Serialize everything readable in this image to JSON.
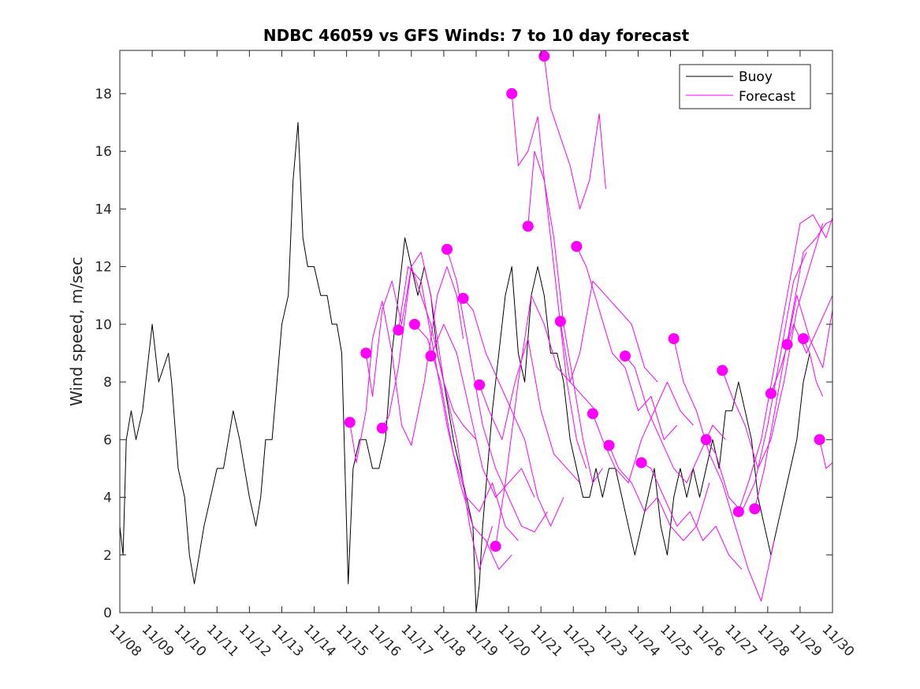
{
  "chart_data": {
    "type": "line",
    "title": "NDBC 46059 vs GFS Winds: 7 to 10 day forecast",
    "xlabel": "",
    "ylabel": "Wind speed, m/sec",
    "xlim": [
      0,
      22
    ],
    "ylim": [
      0,
      19.5
    ],
    "x_ticks": [
      {
        "value": 0,
        "label": "11/08"
      },
      {
        "value": 1,
        "label": "11/09"
      },
      {
        "value": 2,
        "label": "11/10"
      },
      {
        "value": 3,
        "label": "11/11"
      },
      {
        "value": 4,
        "label": "11/12"
      },
      {
        "value": 5,
        "label": "11/13"
      },
      {
        "value": 6,
        "label": "11/14"
      },
      {
        "value": 7,
        "label": "11/15"
      },
      {
        "value": 8,
        "label": "11/16"
      },
      {
        "value": 9,
        "label": "11/17"
      },
      {
        "value": 10,
        "label": "11/18"
      },
      {
        "value": 11,
        "label": "11/19"
      },
      {
        "value": 12,
        "label": "11/20"
      },
      {
        "value": 13,
        "label": "11/21"
      },
      {
        "value": 14,
        "label": "11/22"
      },
      {
        "value": 15,
        "label": "11/23"
      },
      {
        "value": 16,
        "label": "11/24"
      },
      {
        "value": 17,
        "label": "11/25"
      },
      {
        "value": 18,
        "label": "11/26"
      },
      {
        "value": 19,
        "label": "11/27"
      },
      {
        "value": 20,
        "label": "11/28"
      },
      {
        "value": 21,
        "label": "11/29"
      },
      {
        "value": 22,
        "label": "11/30"
      }
    ],
    "y_ticks": [
      {
        "value": 0,
        "label": "0"
      },
      {
        "value": 2,
        "label": "2"
      },
      {
        "value": 4,
        "label": "4"
      },
      {
        "value": 6,
        "label": "6"
      },
      {
        "value": 8,
        "label": "8"
      },
      {
        "value": 10,
        "label": "10"
      },
      {
        "value": 12,
        "label": "12"
      },
      {
        "value": 14,
        "label": "14"
      },
      {
        "value": 16,
        "label": "16"
      },
      {
        "value": 18,
        "label": "18"
      }
    ],
    "legend": {
      "position": "top-right",
      "entries": [
        {
          "name": "Buoy",
          "color": "#000000"
        },
        {
          "name": "Forecast",
          "color": "#ff00ff"
        }
      ]
    },
    "series": [
      {
        "name": "Buoy",
        "color": "#000000",
        "x": [
          0,
          0.1,
          0.2,
          0.35,
          0.5,
          0.7,
          0.9,
          1.0,
          1.2,
          1.5,
          1.6,
          1.8,
          2.0,
          2.15,
          2.3,
          2.45,
          2.6,
          2.8,
          3.0,
          3.2,
          3.35,
          3.5,
          3.7,
          3.85,
          4.0,
          4.2,
          4.35,
          4.5,
          4.7,
          4.85,
          5.0,
          5.2,
          5.35,
          5.5,
          5.65,
          5.8,
          6.0,
          6.2,
          6.4,
          6.55,
          6.7,
          6.85,
          6.95,
          7.05,
          7.2,
          7.4,
          7.6,
          7.8,
          8.0,
          8.2,
          8.4,
          8.6,
          8.8,
          9.0,
          9.2,
          9.4,
          9.6,
          9.8,
          10.0,
          10.15,
          10.3,
          10.5,
          10.7,
          10.9,
          11.0,
          11.1,
          11.2,
          11.35,
          11.5,
          11.7,
          11.9,
          12.1,
          12.3,
          12.5,
          12.7,
          12.9,
          13.1,
          13.3,
          13.5,
          13.7,
          13.9,
          14.1,
          14.3,
          14.5,
          14.7,
          14.9,
          15.1,
          15.3,
          15.5,
          15.7,
          15.9,
          16.1,
          16.3,
          16.5,
          16.7,
          16.9,
          17.1,
          17.3,
          17.5,
          17.7,
          17.9,
          18.1,
          18.3,
          18.5,
          18.7,
          18.9,
          19.1,
          19.3,
          19.5,
          19.7,
          19.9,
          20.1,
          20.3,
          20.5,
          20.7,
          20.9,
          21.1,
          21.3
        ],
        "values": [
          3,
          2,
          6,
          7,
          6,
          7,
          9,
          10,
          8,
          9,
          8,
          5,
          4,
          2,
          1,
          2,
          3,
          4,
          5,
          5,
          6,
          7,
          6,
          5,
          4,
          3,
          4,
          6,
          6,
          8,
          10,
          11,
          15,
          17,
          13,
          12,
          12,
          11,
          11,
          10,
          10,
          9,
          5,
          1,
          5,
          6,
          6,
          5,
          5,
          6,
          9,
          11,
          13,
          12,
          11,
          12,
          11,
          9,
          8,
          7,
          6,
          5,
          4,
          3,
          0,
          1,
          3,
          5,
          7,
          9,
          11,
          12,
          9,
          8,
          11,
          12,
          11,
          9,
          9,
          8,
          6,
          5,
          4,
          4,
          5,
          4,
          5,
          5,
          4,
          3,
          2,
          3,
          4,
          5,
          3,
          2,
          4,
          5,
          4,
          5,
          4,
          5,
          6,
          5,
          7,
          7,
          8,
          7,
          6,
          4,
          3,
          2,
          3,
          4,
          5,
          6,
          8,
          9
        ]
      },
      {
        "name": "Forecast run 1",
        "color": "#ff00ff",
        "x": [
          7.1,
          7.3,
          7.6,
          7.8,
          8.1,
          8.4,
          8.7,
          9.0,
          9.4,
          9.8,
          10.1,
          10.4,
          10.6
        ],
        "values": [
          6.6,
          5.2,
          7.0,
          9.5,
          10.8,
          9.0,
          6.5,
          5.8,
          8.0,
          11.0,
          12.0,
          11.0,
          9.5
        ]
      },
      {
        "name": "Forecast run 2",
        "color": "#ff00ff",
        "x": [
          7.6,
          7.8,
          8.1,
          8.4,
          8.7,
          9.0,
          9.3,
          9.6,
          10.0,
          10.3,
          10.6,
          11.0
        ],
        "values": [
          9.0,
          7.5,
          10.5,
          11.5,
          10.0,
          12.0,
          11.0,
          10.0,
          8.0,
          7.0,
          6.5,
          6.0
        ]
      },
      {
        "name": "Forecast run 3",
        "color": "#ff00ff",
        "x": [
          8.1,
          8.3,
          8.6,
          9.0,
          9.3,
          9.6,
          10.0,
          10.4,
          10.8,
          11.1,
          11.5
        ],
        "values": [
          6.4,
          6.8,
          8.5,
          12.0,
          12.5,
          11.0,
          8.0,
          6.0,
          3.0,
          1.5,
          3.0
        ]
      },
      {
        "name": "Forecast run 4",
        "color": "#ff00ff",
        "x": [
          8.6,
          8.9,
          9.3,
          9.7,
          10.1,
          10.5,
          10.9,
          11.3,
          11.7,
          12.1
        ],
        "values": [
          9.8,
          12.0,
          11.5,
          9.0,
          6.5,
          4.5,
          3.0,
          2.5,
          1.5,
          2.0
        ]
      },
      {
        "name": "Forecast run 5",
        "color": "#ff00ff",
        "x": [
          9.1,
          9.5,
          9.9,
          10.3,
          10.7,
          11.1,
          11.5,
          11.9,
          12.3
        ],
        "values": [
          10.0,
          9.5,
          8.0,
          5.5,
          4.0,
          3.5,
          4.5,
          3.0,
          2.5
        ]
      },
      {
        "name": "Forecast run 6",
        "color": "#ff00ff",
        "x": [
          9.6,
          10.0,
          10.4,
          10.8,
          11.2,
          11.6,
          12.0,
          12.4,
          12.8
        ],
        "values": [
          8.9,
          10.0,
          9.0,
          7.0,
          5.0,
          4.0,
          4.5,
          5.0,
          4.0
        ]
      },
      {
        "name": "Forecast run 7",
        "color": "#ff00ff",
        "x": [
          10.1,
          10.4,
          10.8,
          11.2,
          11.6,
          12.0,
          12.4,
          12.8,
          13.2
        ],
        "values": [
          12.6,
          11.5,
          9.0,
          6.5,
          5.0,
          4.0,
          3.0,
          2.8,
          3.5
        ]
      },
      {
        "name": "Forecast run 8",
        "color": "#ff00ff",
        "x": [
          10.6,
          10.9,
          11.3,
          11.7,
          12.1,
          12.5,
          12.9,
          13.3,
          13.7
        ],
        "values": [
          10.9,
          10.5,
          9.0,
          8.0,
          7.0,
          6.0,
          4.0,
          3.0,
          4.0
        ]
      },
      {
        "name": "Forecast run 9",
        "color": "#ff00ff",
        "x": [
          11.1,
          11.4,
          11.8,
          12.2,
          12.6,
          13.0,
          13.4,
          13.8,
          14.2
        ],
        "values": [
          7.9,
          7.0,
          6.0,
          8.0,
          9.5,
          7.0,
          5.5,
          5.0,
          4.5
        ]
      },
      {
        "name": "Forecast run 10",
        "color": "#ff00ff",
        "x": [
          11.6,
          11.9,
          12.3,
          12.7,
          13.1,
          13.5,
          13.9,
          14.3,
          14.7
        ],
        "values": [
          2.3,
          4.5,
          8.0,
          11.0,
          10.0,
          8.5,
          8.0,
          7.5,
          7.0
        ]
      },
      {
        "name": "Forecast run 11",
        "color": "#ff00ff",
        "x": [
          12.1,
          12.3,
          12.6,
          12.9,
          13.2,
          13.5,
          13.8,
          14.1,
          14.4
        ],
        "values": [
          18.0,
          15.5,
          16.0,
          17.2,
          14.0,
          11.0,
          8.0,
          6.0,
          5.0
        ]
      },
      {
        "name": "Forecast run 12",
        "color": "#ff00ff",
        "x": [
          12.6,
          12.8,
          13.1,
          13.4,
          13.7,
          14.0,
          14.3,
          14.6,
          14.9
        ],
        "values": [
          13.4,
          16.0,
          15.0,
          13.0,
          10.0,
          8.0,
          6.0,
          4.5,
          5.0
        ]
      },
      {
        "name": "Forecast run 13",
        "color": "#ff00ff",
        "x": [
          13.1,
          13.3,
          13.6,
          13.9,
          14.2,
          14.5,
          14.8,
          15.0
        ],
        "values": [
          19.3,
          17.5,
          16.5,
          15.5,
          14.0,
          15.0,
          17.3,
          14.7
        ]
      },
      {
        "name": "Forecast run 14",
        "color": "#ff00ff",
        "x": [
          13.6,
          13.9,
          14.2,
          14.6,
          15.0,
          15.4,
          15.8,
          16.2,
          16.6
        ],
        "values": [
          10.1,
          8.0,
          9.0,
          11.5,
          11.0,
          10.5,
          10.0,
          8.5,
          8.0
        ]
      },
      {
        "name": "Forecast run 15",
        "color": "#ff00ff",
        "x": [
          14.1,
          14.4,
          14.8,
          15.2,
          15.6,
          16.0,
          16.4,
          16.8,
          17.2
        ],
        "values": [
          12.7,
          12.0,
          10.5,
          9.0,
          8.5,
          7.0,
          7.5,
          6.0,
          6.5
        ]
      },
      {
        "name": "Forecast run 16",
        "color": "#ff00ff",
        "x": [
          14.6,
          14.9,
          15.3,
          15.7,
          16.1,
          16.5,
          16.9,
          17.3,
          17.7
        ],
        "values": [
          6.9,
          6.0,
          5.0,
          4.5,
          6.0,
          7.0,
          8.0,
          7.0,
          6.5
        ]
      },
      {
        "name": "Forecast run 17",
        "color": "#ff00ff",
        "x": [
          15.1,
          15.4,
          15.8,
          16.2,
          16.6,
          17.0,
          17.4,
          17.8,
          18.2
        ],
        "values": [
          5.8,
          5.0,
          4.5,
          3.5,
          4.0,
          3.0,
          2.5,
          3.0,
          4.5
        ]
      },
      {
        "name": "Forecast run 18",
        "color": "#ff00ff",
        "x": [
          15.6,
          15.9,
          16.3,
          16.7,
          17.1,
          17.5,
          17.9,
          18.3,
          18.7
        ],
        "values": [
          8.9,
          8.5,
          7.0,
          6.0,
          5.0,
          4.5,
          5.5,
          6.5,
          6.0
        ]
      },
      {
        "name": "Forecast run 19",
        "color": "#ff00ff",
        "x": [
          16.1,
          16.4,
          16.8,
          17.2,
          17.6,
          18.0,
          18.4,
          18.8,
          19.2
        ],
        "values": [
          5.2,
          5.0,
          4.0,
          3.0,
          3.5,
          2.5,
          3.0,
          2.0,
          1.5
        ]
      },
      {
        "name": "Forecast run 20",
        "color": "#ff00ff",
        "x": [
          17.1,
          17.4,
          17.8,
          18.2,
          18.6,
          19.0,
          19.4,
          19.8,
          20.2
        ],
        "values": [
          9.5,
          8.0,
          7.0,
          5.5,
          4.5,
          3.0,
          1.5,
          0.4,
          2.5
        ]
      },
      {
        "name": "Forecast run 21",
        "color": "#ff00ff",
        "x": [
          18.1,
          18.4,
          18.8,
          19.2,
          19.6,
          20.0,
          20.4,
          20.8,
          21.2
        ],
        "values": [
          6.0,
          5.5,
          4.0,
          3.5,
          4.5,
          6.5,
          9.0,
          11.5,
          12.5
        ]
      },
      {
        "name": "Forecast run 22",
        "color": "#ff00ff",
        "x": [
          18.6,
          18.9,
          19.3,
          19.7,
          20.1,
          20.5,
          20.9,
          21.3,
          21.7
        ],
        "values": [
          8.4,
          7.5,
          6.5,
          5.0,
          6.0,
          8.0,
          10.5,
          12.0,
          13.5
        ]
      },
      {
        "name": "Forecast run 23",
        "color": "#ff00ff",
        "x": [
          19.1,
          19.4,
          19.8,
          20.2,
          20.6,
          21.0,
          21.4,
          21.8,
          22.0
        ],
        "values": [
          3.5,
          4.5,
          6.0,
          8.5,
          11.0,
          13.5,
          13.8,
          13.0,
          13.7
        ]
      },
      {
        "name": "Forecast run 24",
        "color": "#ff00ff",
        "x": [
          19.6,
          19.9,
          20.3,
          20.7,
          21.1,
          21.5,
          21.8,
          22.0
        ],
        "values": [
          3.6,
          5.0,
          7.5,
          10.0,
          12.5,
          13.0,
          13.5,
          13.6
        ]
      },
      {
        "name": "Forecast run 25",
        "color": "#ff00ff",
        "x": [
          20.1,
          20.4,
          20.8,
          21.2,
          21.6,
          22.0
        ],
        "values": [
          7.6,
          8.5,
          10.0,
          9.0,
          10.0,
          11.0
        ]
      },
      {
        "name": "Forecast run 26",
        "color": "#ff00ff",
        "x": [
          20.6,
          20.9,
          21.3,
          21.7,
          22.0
        ],
        "values": [
          9.3,
          11.0,
          9.5,
          8.5,
          10.5
        ]
      },
      {
        "name": "Forecast run 27",
        "color": "#ff00ff",
        "x": [
          21.1,
          21.3,
          21.5,
          21.7
        ],
        "values": [
          9.5,
          9.0,
          8.0,
          7.5
        ]
      },
      {
        "name": "Forecast run 28",
        "color": "#ff00ff",
        "x": [
          21.6,
          21.8,
          22.0
        ],
        "values": [
          6.0,
          5.0,
          5.2
        ]
      }
    ],
    "forecast_start_points": {
      "color": "#ff00ff",
      "x": [
        7.1,
        7.6,
        8.1,
        8.6,
        9.1,
        9.6,
        10.1,
        10.6,
        11.1,
        11.6,
        12.1,
        12.6,
        13.1,
        13.6,
        14.1,
        14.6,
        15.1,
        15.6,
        16.1,
        17.1,
        18.1,
        18.6,
        19.1,
        19.6,
        20.1,
        20.6,
        21.1,
        21.6
      ],
      "values": [
        6.6,
        9.0,
        6.4,
        9.8,
        10.0,
        8.9,
        12.6,
        10.9,
        7.9,
        2.3,
        18.0,
        13.4,
        19.3,
        10.1,
        12.7,
        6.9,
        5.8,
        8.9,
        5.2,
        9.5,
        6.0,
        8.4,
        3.5,
        3.6,
        7.6,
        9.3,
        9.5,
        6.0
      ]
    }
  }
}
